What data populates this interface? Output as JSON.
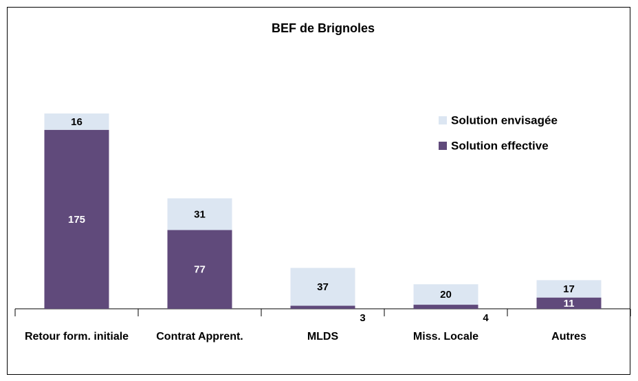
{
  "chart_data": {
    "type": "stacked_bar",
    "title": "BEF de Brignoles",
    "categories": [
      "Retour form. initiale",
      "Contrat Apprent.",
      "MLDS",
      "Miss. Locale",
      "Autres"
    ],
    "series": [
      {
        "name": "Solution effective",
        "color": "#604a7b",
        "values": [
          175,
          77,
          3,
          4,
          11
        ]
      },
      {
        "name": "Solution envisagée",
        "color": "#dce6f2",
        "values": [
          16,
          31,
          37,
          20,
          17
        ]
      }
    ],
    "legend": "upper right"
  }
}
